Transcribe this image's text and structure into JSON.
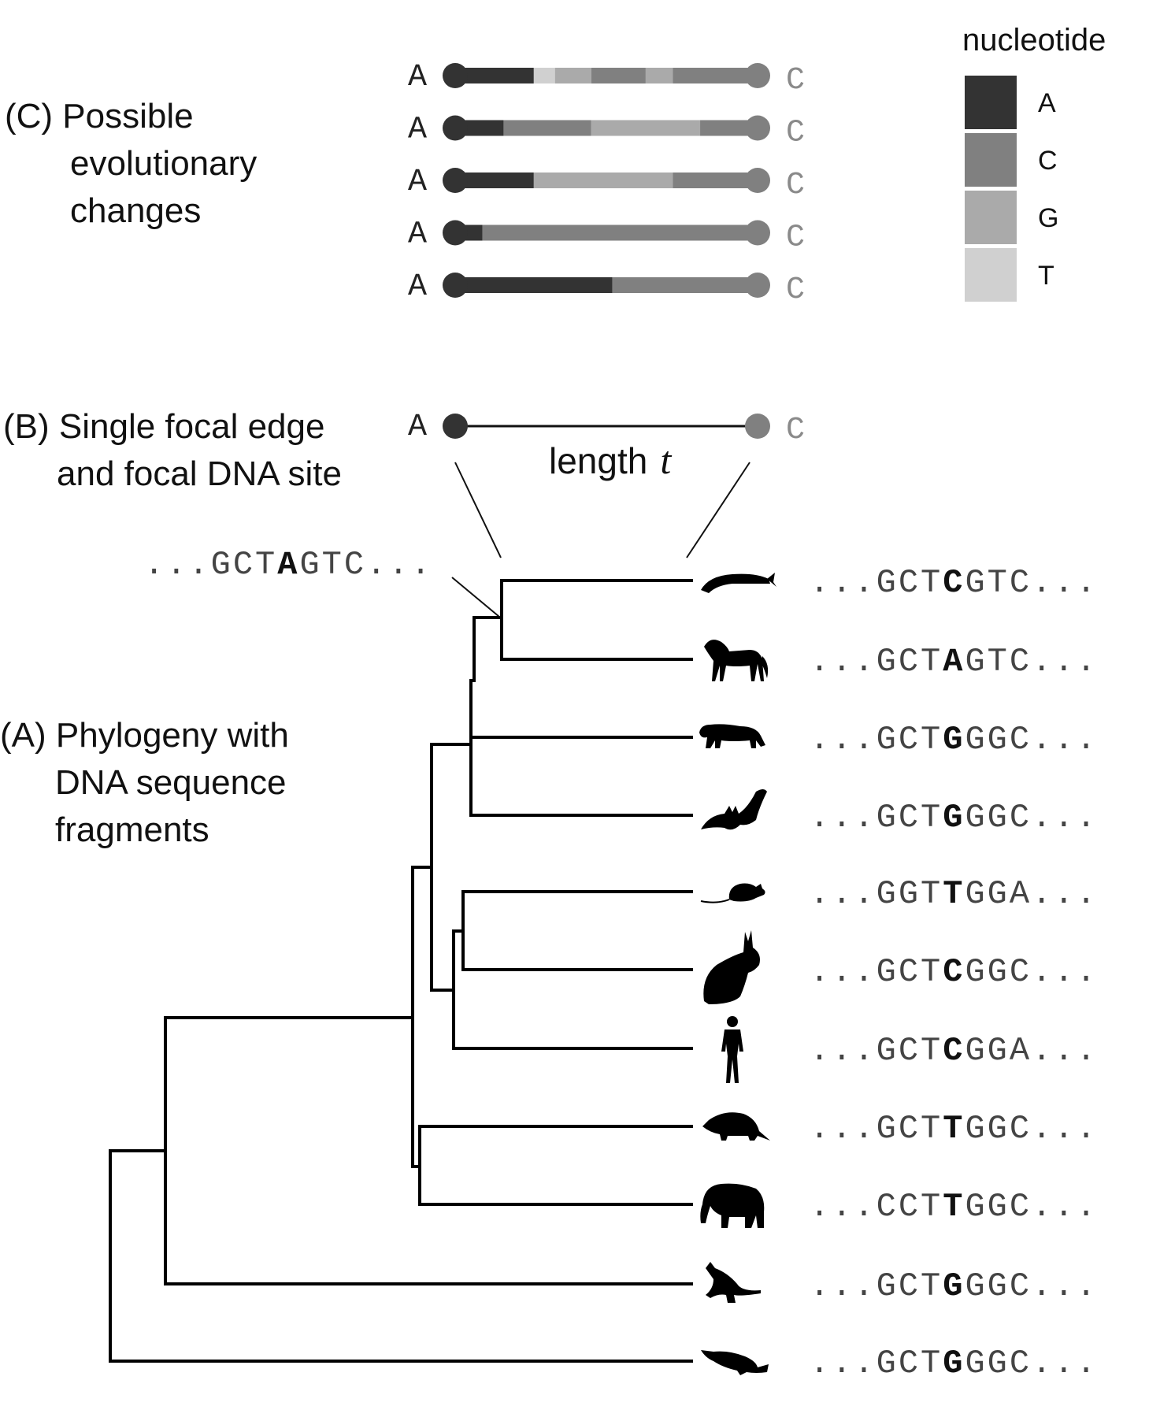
{
  "panels": {
    "c_title_lines": [
      "(C) Possible",
      "evolutionary",
      "changes"
    ],
    "b_title_lines": [
      "(B) Single focal edge",
      "and focal DNA site"
    ],
    "a_title_lines": [
      "(A) Phylogeny with",
      "DNA sequence",
      "fragments"
    ]
  },
  "focal_edge": {
    "start_base": "A",
    "end_base": "C",
    "length_label": "length",
    "length_var": "t"
  },
  "ancestor_sequence": {
    "prefix": "...GCT",
    "focal": "A",
    "suffix": "GTC..."
  },
  "legend": {
    "title": "nucleotide",
    "entries": [
      {
        "label": "A",
        "color": "#333333"
      },
      {
        "label": "C",
        "color": "#808080"
      },
      {
        "label": "G",
        "color": "#aaaaaa"
      },
      {
        "label": "T",
        "color": "#d0d0d0"
      }
    ]
  },
  "evolution_paths": [
    {
      "start": "A",
      "end": "C",
      "segments": [
        [
          "A",
          0.0
        ],
        [
          "T",
          0.26
        ],
        [
          "G",
          0.33
        ],
        [
          "C",
          0.45
        ],
        [
          "G",
          0.63
        ],
        [
          "C",
          0.72
        ]
      ]
    },
    {
      "start": "A",
      "end": "C",
      "segments": [
        [
          "A",
          0.0
        ],
        [
          "C",
          0.16
        ],
        [
          "G",
          0.45
        ],
        [
          "C",
          0.81
        ]
      ]
    },
    {
      "start": "A",
      "end": "C",
      "segments": [
        [
          "A",
          0.0
        ],
        [
          "G",
          0.26
        ],
        [
          "C",
          0.72
        ]
      ]
    },
    {
      "start": "A",
      "end": "C",
      "segments": [
        [
          "A",
          0.0
        ],
        [
          "C",
          0.09
        ]
      ]
    },
    {
      "start": "A",
      "end": "C",
      "segments": [
        [
          "A",
          0.0
        ],
        [
          "C",
          0.52
        ]
      ]
    }
  ],
  "taxa": [
    {
      "animal": "whale-icon",
      "prefix": "...GCT",
      "focal": "C",
      "suffix": "GTC..."
    },
    {
      "animal": "horse-icon",
      "prefix": "...GCT",
      "focal": "A",
      "suffix": "GTC..."
    },
    {
      "animal": "bear-icon",
      "prefix": "...GCT",
      "focal": "G",
      "suffix": "GGC..."
    },
    {
      "animal": "bat-icon",
      "prefix": "...GCT",
      "focal": "G",
      "suffix": "GGC..."
    },
    {
      "animal": "mouse-icon",
      "prefix": "...GGT",
      "focal": "T",
      "suffix": "GGA..."
    },
    {
      "animal": "rabbit-icon",
      "prefix": "...GCT",
      "focal": "C",
      "suffix": "GGC..."
    },
    {
      "animal": "human-icon",
      "prefix": "...GCT",
      "focal": "C",
      "suffix": "GGA..."
    },
    {
      "animal": "armadillo-icon",
      "prefix": "...GCT",
      "focal": "T",
      "suffix": "GGC..."
    },
    {
      "animal": "elephant-icon",
      "prefix": "...CCT",
      "focal": "T",
      "suffix": "GGC..."
    },
    {
      "animal": "kangaroo-icon",
      "prefix": "...GCT",
      "focal": "G",
      "suffix": "GGC..."
    },
    {
      "animal": "platypus-icon",
      "prefix": "...GCT",
      "focal": "G",
      "suffix": "GGC..."
    }
  ]
}
